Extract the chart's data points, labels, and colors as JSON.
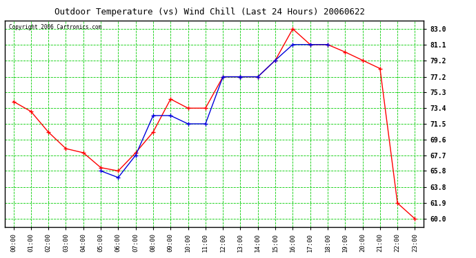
{
  "title": "Outdoor Temperature (vs) Wind Chill (Last 24 Hours) 20060622",
  "copyright": "Copyright 2006 Cartronics.com",
  "hours": [
    "00:00",
    "01:00",
    "02:00",
    "03:00",
    "04:00",
    "05:00",
    "06:00",
    "07:00",
    "08:00",
    "09:00",
    "10:00",
    "11:00",
    "12:00",
    "13:00",
    "14:00",
    "15:00",
    "16:00",
    "17:00",
    "18:00",
    "19:00",
    "20:00",
    "21:00",
    "22:00",
    "23:00"
  ],
  "temp": [
    74.2,
    73.0,
    70.5,
    68.5,
    68.0,
    66.2,
    65.8,
    68.0,
    70.5,
    74.5,
    73.4,
    73.4,
    77.2,
    77.2,
    77.2,
    79.2,
    83.0,
    81.1,
    81.1,
    80.2,
    79.2,
    78.2,
    61.9,
    60.0
  ],
  "windchill_seg1_x": [
    5,
    6,
    7,
    8,
    9,
    10,
    11,
    12,
    13
  ],
  "windchill_seg1_y": [
    65.8,
    65.0,
    67.7,
    72.5,
    72.5,
    71.5,
    71.5,
    77.2,
    77.2
  ],
  "windchill_seg2_x": [
    13,
    14,
    15,
    16,
    17,
    18
  ],
  "windchill_seg2_y": [
    77.2,
    77.2,
    79.2,
    81.1,
    81.1,
    81.1
  ],
  "temp_color": "#ff0000",
  "windchill_color": "#0000dd",
  "grid_color": "#00cc00",
  "bg_color": "#ffffff",
  "plot_bg": "#ffffff",
  "yticks": [
    60.0,
    61.9,
    63.8,
    65.8,
    67.7,
    69.6,
    71.5,
    73.4,
    75.3,
    77.2,
    79.2,
    81.1,
    83.0
  ],
  "ymin": 59.0,
  "ymax": 84.0
}
